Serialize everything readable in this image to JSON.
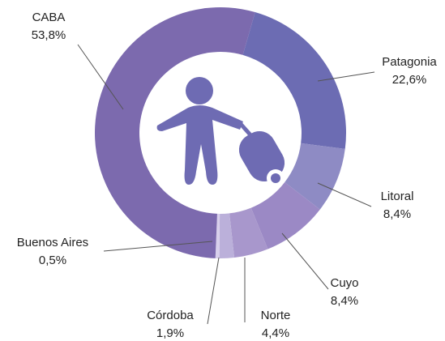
{
  "chart_data": {
    "type": "donut",
    "categories": [
      "Patagonia",
      "Litoral",
      "Cuyo",
      "Norte",
      "Córdoba",
      "Buenos Aires",
      "CABA"
    ],
    "values": [
      22.6,
      8.4,
      8.4,
      4.4,
      1.9,
      0.5,
      53.8
    ],
    "value_labels": [
      "22,6%",
      "8,4%",
      "8,4%",
      "4,4%",
      "1,9%",
      "0,5%",
      "53,8%"
    ],
    "colors": [
      "#6c6cb3",
      "#8e8bc4",
      "#9b89c5",
      "#a897cc",
      "#bbb0da",
      "#d8d0ec",
      "#7c6aae"
    ]
  }
}
